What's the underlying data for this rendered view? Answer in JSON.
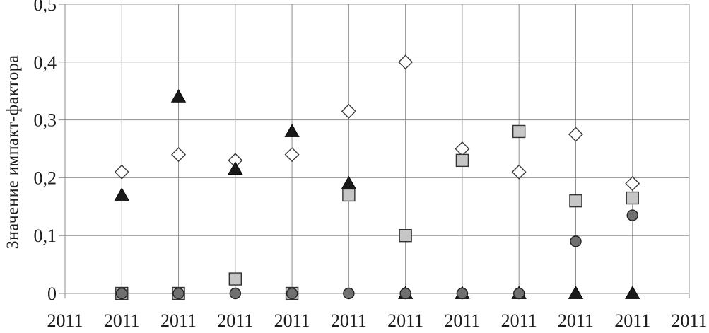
{
  "chart_data": {
    "type": "scatter",
    "title": "",
    "xlabel": "",
    "ylabel": "Значение импакт-фактора",
    "ylim": [
      0,
      0.5
    ],
    "ytick_step": 0.1,
    "ytick_labels": [
      "0",
      "0,1",
      "0,2",
      "0,3",
      "0,4",
      "0,5"
    ],
    "x_labels": [
      "2011",
      "2011",
      "2011",
      "2011",
      "2011",
      "2011",
      "2011",
      "2011",
      "2011",
      "2011",
      "2011",
      "2011"
    ],
    "grid": "both",
    "legend": "none",
    "grid_color": "#8f8f8f",
    "text_color": "#1c1c1c",
    "series": [
      {
        "name": "diamond-series",
        "marker": "diamond",
        "fill": "#ffffff",
        "stroke": "#3a3a3a",
        "values": [
          null,
          0.21,
          0.24,
          0.23,
          0.24,
          0.315,
          0.4,
          0.25,
          0.21,
          0.275,
          0.19,
          null
        ]
      },
      {
        "name": "triangle-series",
        "marker": "triangle",
        "fill": "#191919",
        "stroke": "#000000",
        "values": [
          null,
          0.17,
          0.34,
          0.215,
          0.28,
          0.19,
          0,
          0,
          0,
          0,
          0,
          null
        ]
      },
      {
        "name": "square-series",
        "marker": "square",
        "fill": "#c6c6c6",
        "stroke": "#333333",
        "values": [
          null,
          0,
          0,
          0.025,
          0,
          0.17,
          0.1,
          0.23,
          0.28,
          0.16,
          0.165,
          null
        ]
      },
      {
        "name": "circle-series",
        "marker": "circle",
        "fill": "#707070",
        "stroke": "#222222",
        "values": [
          null,
          0,
          0,
          0,
          0,
          0,
          0,
          0,
          0,
          0.09,
          0.135,
          null
        ]
      }
    ]
  }
}
